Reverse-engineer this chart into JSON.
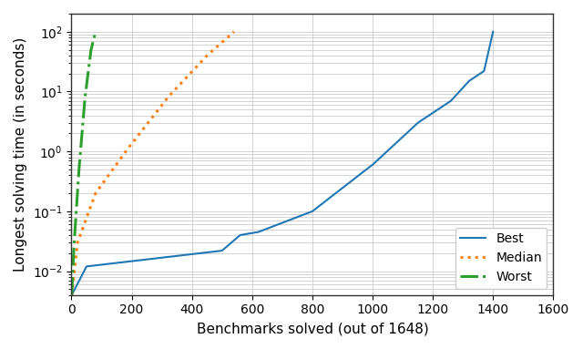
{
  "title": "",
  "xlabel": "Benchmarks solved (out of 1648)",
  "ylabel": "Longest solving time (in seconds)",
  "xlim": [
    0,
    1600
  ],
  "ylim_log": [
    0.004,
    200
  ],
  "xticklabels": [
    0,
    200,
    400,
    600,
    800,
    1000,
    1200,
    1400,
    1600
  ],
  "best": {
    "label": "Best",
    "color": "#1f77b4",
    "linestyle": "solid",
    "linewidth": 1.5
  },
  "median": {
    "label": "Median",
    "color": "#ff7f0e",
    "linestyle": "dotted",
    "linewidth": 2.2
  },
  "worst": {
    "label": "Worst",
    "color": "#2ca02c",
    "linestyle": "dashdot",
    "linewidth": 2.2
  },
  "legend_loc": "lower right",
  "grid_color": "#cccccc",
  "background_color": "#ffffff"
}
